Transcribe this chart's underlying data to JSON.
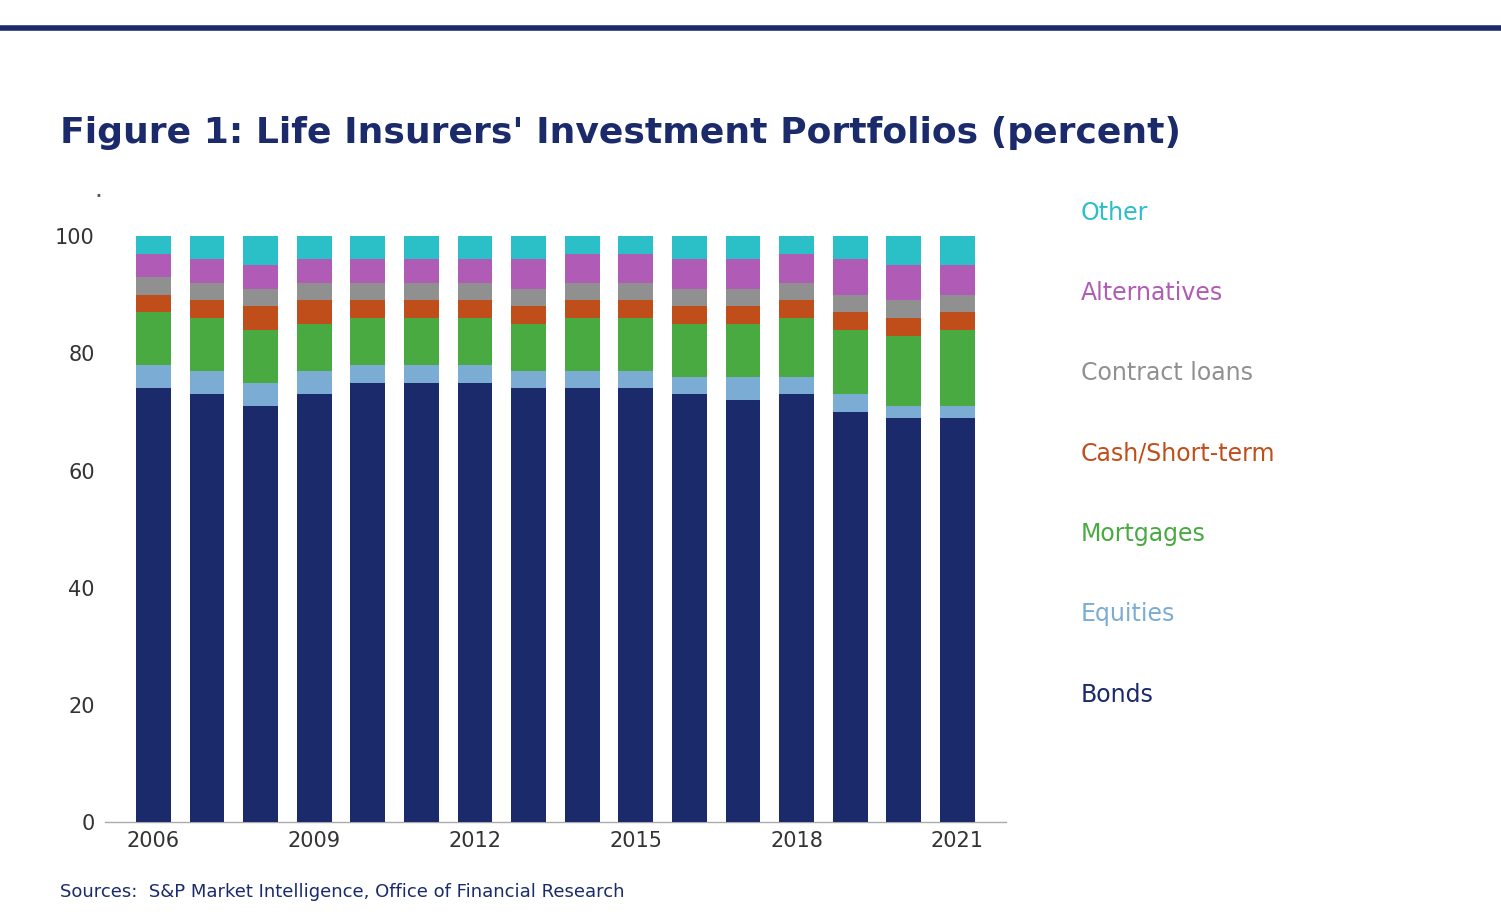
{
  "title": "Figure 1: Life Insurers' Investment Portfolios (percent)",
  "source": "Sources:  S&P Market Intelligence, Office of Financial Research",
  "years": [
    2006,
    2007,
    2008,
    2009,
    2010,
    2011,
    2012,
    2013,
    2014,
    2015,
    2016,
    2017,
    2018,
    2019,
    2020,
    2021
  ],
  "categories": [
    "Bonds",
    "Equities",
    "Mortgages",
    "Cash/Short-term",
    "Contract loans",
    "Alternatives",
    "Other"
  ],
  "colors": [
    "#1b2a6b",
    "#7bacd4",
    "#4aaa42",
    "#c04e1a",
    "#909090",
    "#b05bb5",
    "#2bbfc8"
  ],
  "data": {
    "Bonds": [
      74,
      73,
      71,
      73,
      75,
      75,
      75,
      74,
      74,
      74,
      73,
      72,
      73,
      70,
      69,
      69
    ],
    "Equities": [
      4,
      4,
      4,
      4,
      3,
      3,
      3,
      3,
      3,
      3,
      3,
      4,
      3,
      3,
      2,
      2
    ],
    "Mortgages": [
      9,
      9,
      9,
      8,
      8,
      8,
      8,
      8,
      9,
      9,
      9,
      9,
      10,
      11,
      12,
      13
    ],
    "Cash/Short-term": [
      3,
      3,
      4,
      4,
      3,
      3,
      3,
      3,
      3,
      3,
      3,
      3,
      3,
      3,
      3,
      3
    ],
    "Contract loans": [
      3,
      3,
      3,
      3,
      3,
      3,
      3,
      3,
      3,
      3,
      3,
      3,
      3,
      3,
      3,
      3
    ],
    "Alternatives": [
      4,
      4,
      4,
      4,
      4,
      4,
      4,
      5,
      5,
      5,
      5,
      5,
      5,
      6,
      6,
      5
    ],
    "Other": [
      3,
      4,
      5,
      4,
      4,
      4,
      4,
      4,
      3,
      3,
      4,
      4,
      3,
      4,
      5,
      5
    ]
  },
  "legend_labels": [
    "Other",
    "Alternatives",
    "Contract loans",
    "Cash/Short-term",
    "Mortgages",
    "Equities",
    "Bonds"
  ],
  "legend_text_colors": {
    "Other": "#2bbfc8",
    "Alternatives": "#b05bb5",
    "Contract loans": "#909090",
    "Cash/Short-term": "#c04e1a",
    "Mortgages": "#4aaa42",
    "Equities": "#7bacd4",
    "Bonds": "#1b2a6b"
  },
  "background_color": "#ffffff",
  "top_bar_color": "#1b2a6b",
  "ylim": [
    0,
    104
  ],
  "title_color": "#1b2a6b",
  "title_fontsize": 26,
  "tick_fontsize": 15,
  "source_fontsize": 13,
  "source_color": "#1b2a6b",
  "legend_fontsize": 17
}
